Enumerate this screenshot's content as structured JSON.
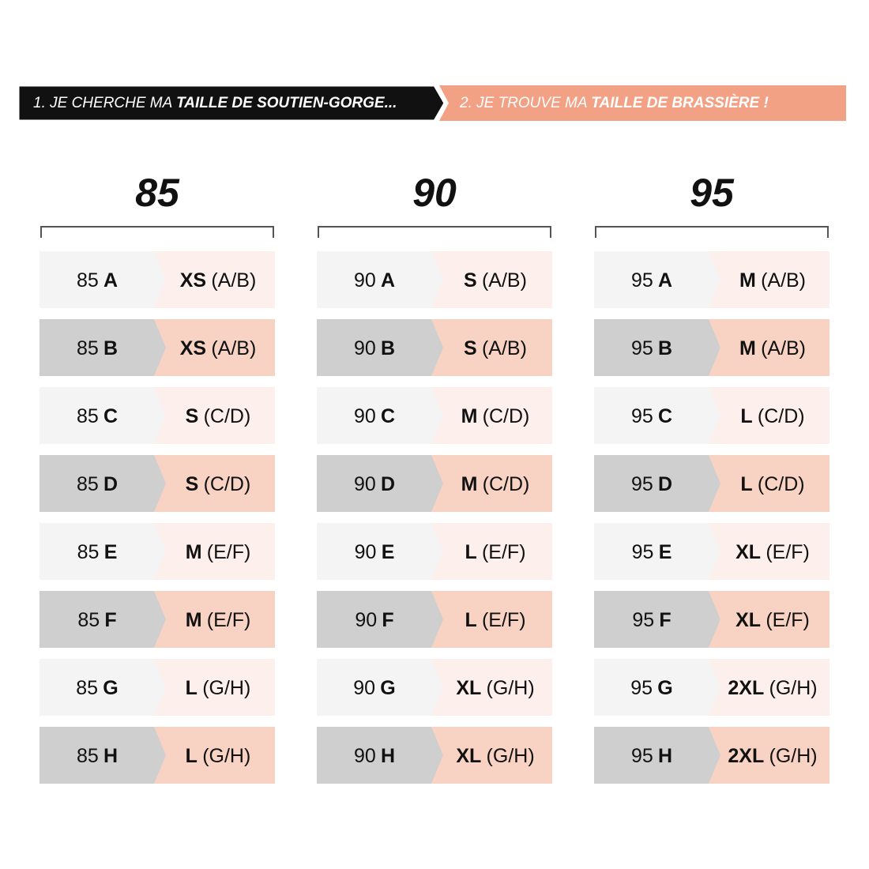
{
  "steps": [
    {
      "text": "1. JE CHERCHE MA",
      "bold": "TAILLE DE SOUTIEN-GORGE..."
    },
    {
      "text": "2. JE TROUVE MA",
      "bold": "TAILLE DE BRASSIÈRE  !"
    }
  ],
  "columns": [
    {
      "title": "85",
      "rows": [
        {
          "band": "85",
          "cup": "A",
          "size": "XS",
          "cups": "(A/B)"
        },
        {
          "band": "85",
          "cup": "B",
          "size": "XS",
          "cups": "(A/B)"
        },
        {
          "band": "85",
          "cup": "C",
          "size": "S",
          "cups": "(C/D)"
        },
        {
          "band": "85",
          "cup": "D",
          "size": "S",
          "cups": "(C/D)"
        },
        {
          "band": "85",
          "cup": "E",
          "size": "M",
          "cups": "(E/F)"
        },
        {
          "band": "85",
          "cup": "F",
          "size": "M",
          "cups": "(E/F)"
        },
        {
          "band": "85",
          "cup": "G",
          "size": "L",
          "cups": "(G/H)"
        },
        {
          "band": "85",
          "cup": "H",
          "size": "L",
          "cups": "(G/H)"
        }
      ]
    },
    {
      "title": "90",
      "rows": [
        {
          "band": "90",
          "cup": "A",
          "size": "S",
          "cups": "(A/B)"
        },
        {
          "band": "90",
          "cup": "B",
          "size": "S",
          "cups": "(A/B)"
        },
        {
          "band": "90",
          "cup": "C",
          "size": "M",
          "cups": "(C/D)"
        },
        {
          "band": "90",
          "cup": "D",
          "size": "M",
          "cups": "(C/D)"
        },
        {
          "band": "90",
          "cup": "E",
          "size": "L",
          "cups": "(E/F)"
        },
        {
          "band": "90",
          "cup": "F",
          "size": "L",
          "cups": "(E/F)"
        },
        {
          "band": "90",
          "cup": "G",
          "size": "XL",
          "cups": "(G/H)"
        },
        {
          "band": "90",
          "cup": "H",
          "size": "XL",
          "cups": "(G/H)"
        }
      ]
    },
    {
      "title": "95",
      "rows": [
        {
          "band": "95",
          "cup": "A",
          "size": "M",
          "cups": "(A/B)"
        },
        {
          "band": "95",
          "cup": "B",
          "size": "M",
          "cups": "(A/B)"
        },
        {
          "band": "95",
          "cup": "C",
          "size": "L",
          "cups": "(C/D)"
        },
        {
          "band": "95",
          "cup": "D",
          "size": "L",
          "cups": "(C/D)"
        },
        {
          "band": "95",
          "cup": "E",
          "size": "XL",
          "cups": "(E/F)"
        },
        {
          "band": "95",
          "cup": "F",
          "size": "XL",
          "cups": "(E/F)"
        },
        {
          "band": "95",
          "cup": "G",
          "size": "2XL",
          "cups": "(G/H)"
        },
        {
          "band": "95",
          "cup": "H",
          "size": "2XL",
          "cups": "(G/H)"
        }
      ]
    }
  ]
}
